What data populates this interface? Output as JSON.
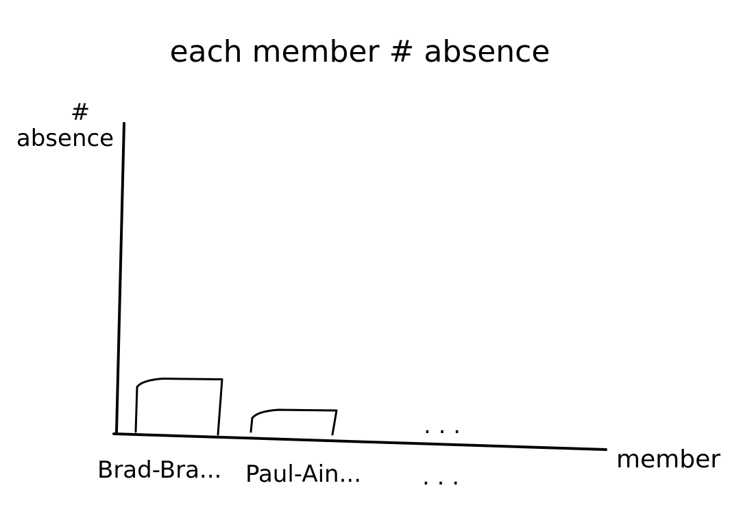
{
  "chart_data": {
    "type": "bar",
    "title": "each member # absence",
    "ylabel_symbol": "#",
    "ylabel": "absence",
    "xlabel": "member",
    "categories": [
      "Brad-Bra...",
      "Paul-Ain..."
    ],
    "values": [
      2.1,
      0.9
    ],
    "ylim": [
      0,
      12
    ],
    "continuation": ". . .",
    "grid": false,
    "legend": "none",
    "color": "#000000"
  }
}
